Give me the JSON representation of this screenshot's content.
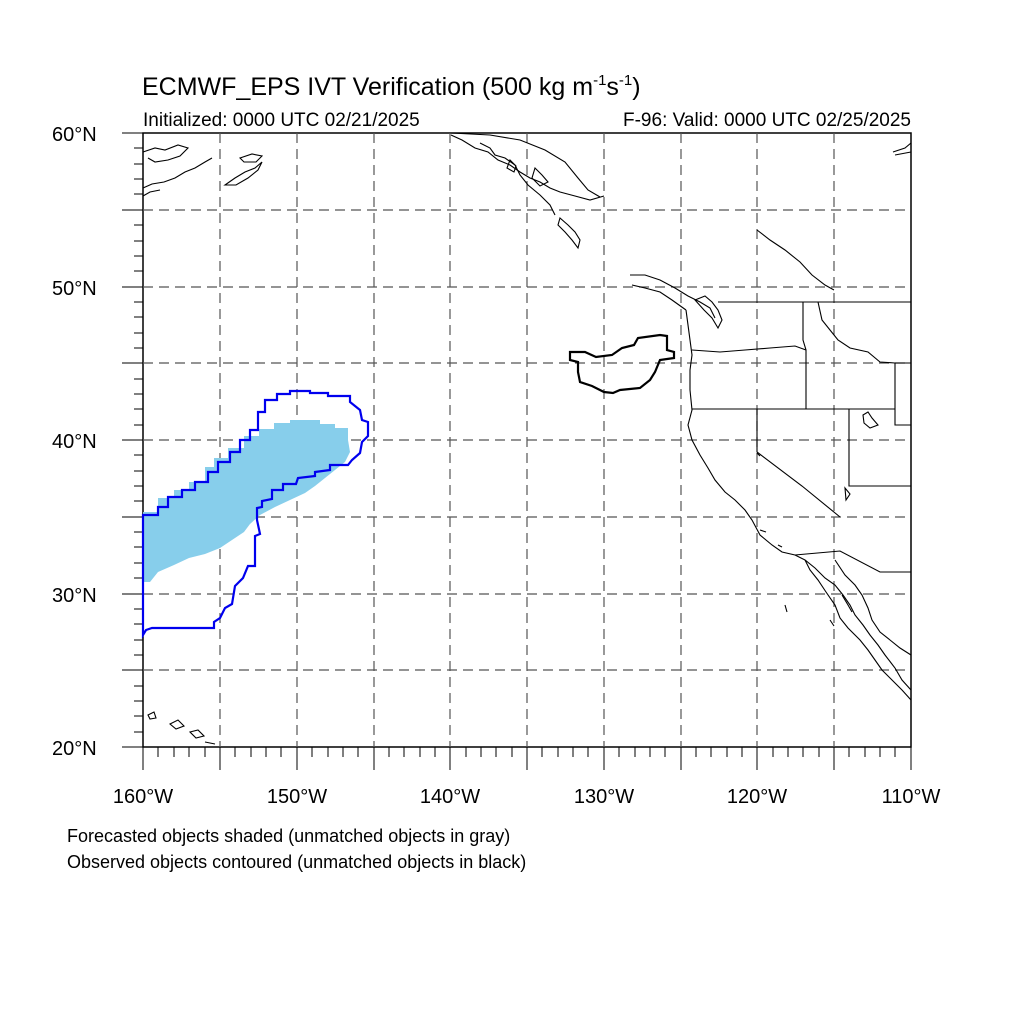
{
  "title": {
    "text": "ECMWF_EPS IVT Verification (500 kg m",
    "sup1": "-1",
    "mid": "s",
    "sup2": "-1",
    "end": ")"
  },
  "init_label": "Initialized: 0000 UTC 02/21/2025",
  "valid_label": "F-96: Valid: 0000 UTC 02/25/2025",
  "captions": [
    "Forecasted objects shaded (unmatched objects in gray)",
    "Observed objects contoured (unmatched objects in black)"
  ],
  "map": {
    "lon_range": [
      -160,
      -110
    ],
    "lat_range": [
      20,
      60
    ],
    "x_ticks": [
      "160°W",
      "150°W",
      "140°W",
      "130°W",
      "120°W",
      "110°W"
    ],
    "y_ticks": [
      "20°N",
      "30°N",
      "40°N",
      "50°N",
      "60°N"
    ],
    "grid_lines": "dashed every 5 degrees",
    "colors": {
      "forecast_fill": "#87ceeb",
      "observed_matched_contour": "#0000ff",
      "observed_unmatched_contour": "#000000",
      "coastline": "#000000",
      "grid": "#555555"
    }
  }
}
